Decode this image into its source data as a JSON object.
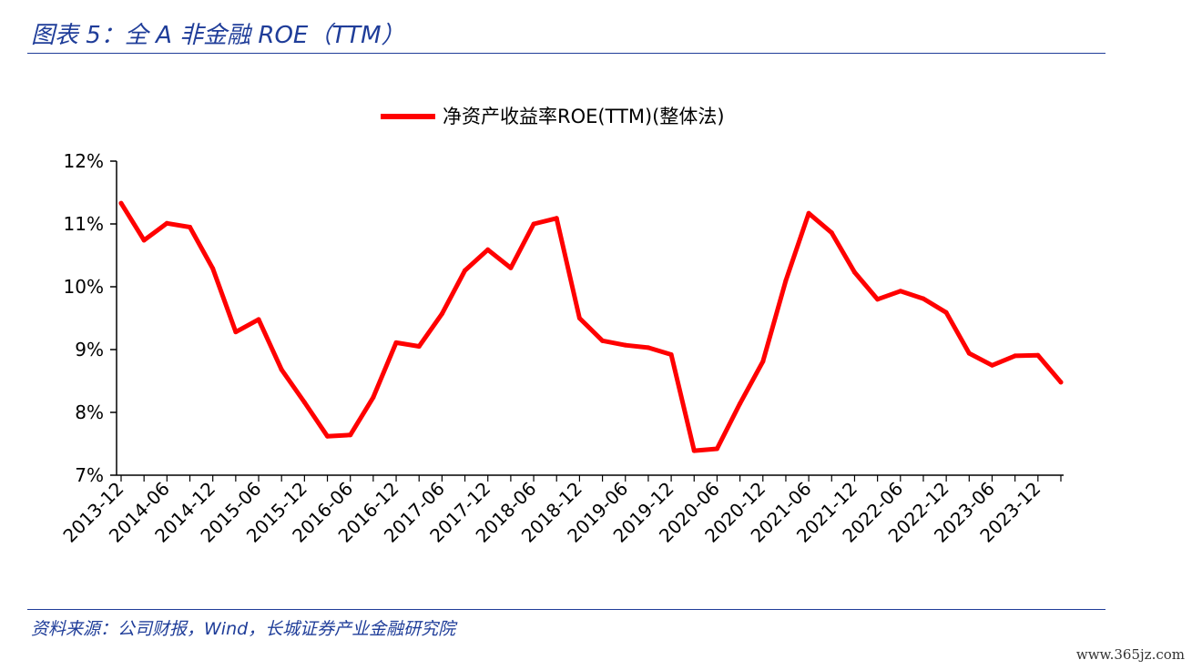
{
  "figure_title": "图表 5：全 A 非金融 ROE（TTM）",
  "source_note": "资料来源：公司财报，Wind，长城证券产业金融研究院",
  "watermark": "www.365jz.com",
  "colors": {
    "line": "#ff0000",
    "accent": "#1f3d99",
    "axis": "#000000"
  },
  "chart_data": {
    "type": "line",
    "legend_position": "top-center",
    "grid": false,
    "ylim": [
      7,
      12
    ],
    "y_ticks": [
      "7%",
      "8%",
      "9%",
      "10%",
      "11%",
      "12%"
    ],
    "y_tick_values": [
      7,
      8,
      9,
      10,
      11,
      12
    ],
    "x_tick_labels": [
      "2013-12",
      "2014-06",
      "2014-12",
      "2015-06",
      "2015-12",
      "2016-06",
      "2016-12",
      "2017-06",
      "2017-12",
      "2018-06",
      "2018-12",
      "2019-06",
      "2019-12",
      "2020-06",
      "2020-12",
      "2021-06",
      "2021-12",
      "2022-06",
      "2022-12",
      "2023-06",
      "2023-12"
    ],
    "categories": [
      "2013-12",
      "2014-03",
      "2014-06",
      "2014-09",
      "2014-12",
      "2015-03",
      "2015-06",
      "2015-09",
      "2015-12",
      "2016-03",
      "2016-06",
      "2016-09",
      "2016-12",
      "2017-03",
      "2017-06",
      "2017-09",
      "2017-12",
      "2018-03",
      "2018-06",
      "2018-09",
      "2018-12",
      "2019-03",
      "2019-06",
      "2019-09",
      "2019-12",
      "2020-03",
      "2020-06",
      "2020-09",
      "2020-12",
      "2021-03",
      "2021-06",
      "2021-09",
      "2021-12",
      "2022-03",
      "2022-06",
      "2022-09",
      "2022-12",
      "2023-03",
      "2023-06",
      "2023-09",
      "2023-12",
      "2024-03"
    ],
    "series": [
      {
        "name": "净资产收益率ROE(TTM)(整体法)",
        "values": [
          11.33,
          10.74,
          11.01,
          10.95,
          10.29,
          9.28,
          9.48,
          8.68,
          8.16,
          7.62,
          7.64,
          8.24,
          9.11,
          9.05,
          9.57,
          10.26,
          10.59,
          10.3,
          11.0,
          11.09,
          9.5,
          9.14,
          9.07,
          9.03,
          8.92,
          7.39,
          7.42,
          8.14,
          8.81,
          10.1,
          11.17,
          10.86,
          10.23,
          9.8,
          9.93,
          9.81,
          9.59,
          8.94,
          8.75,
          8.9,
          8.91,
          8.48
        ]
      }
    ]
  }
}
